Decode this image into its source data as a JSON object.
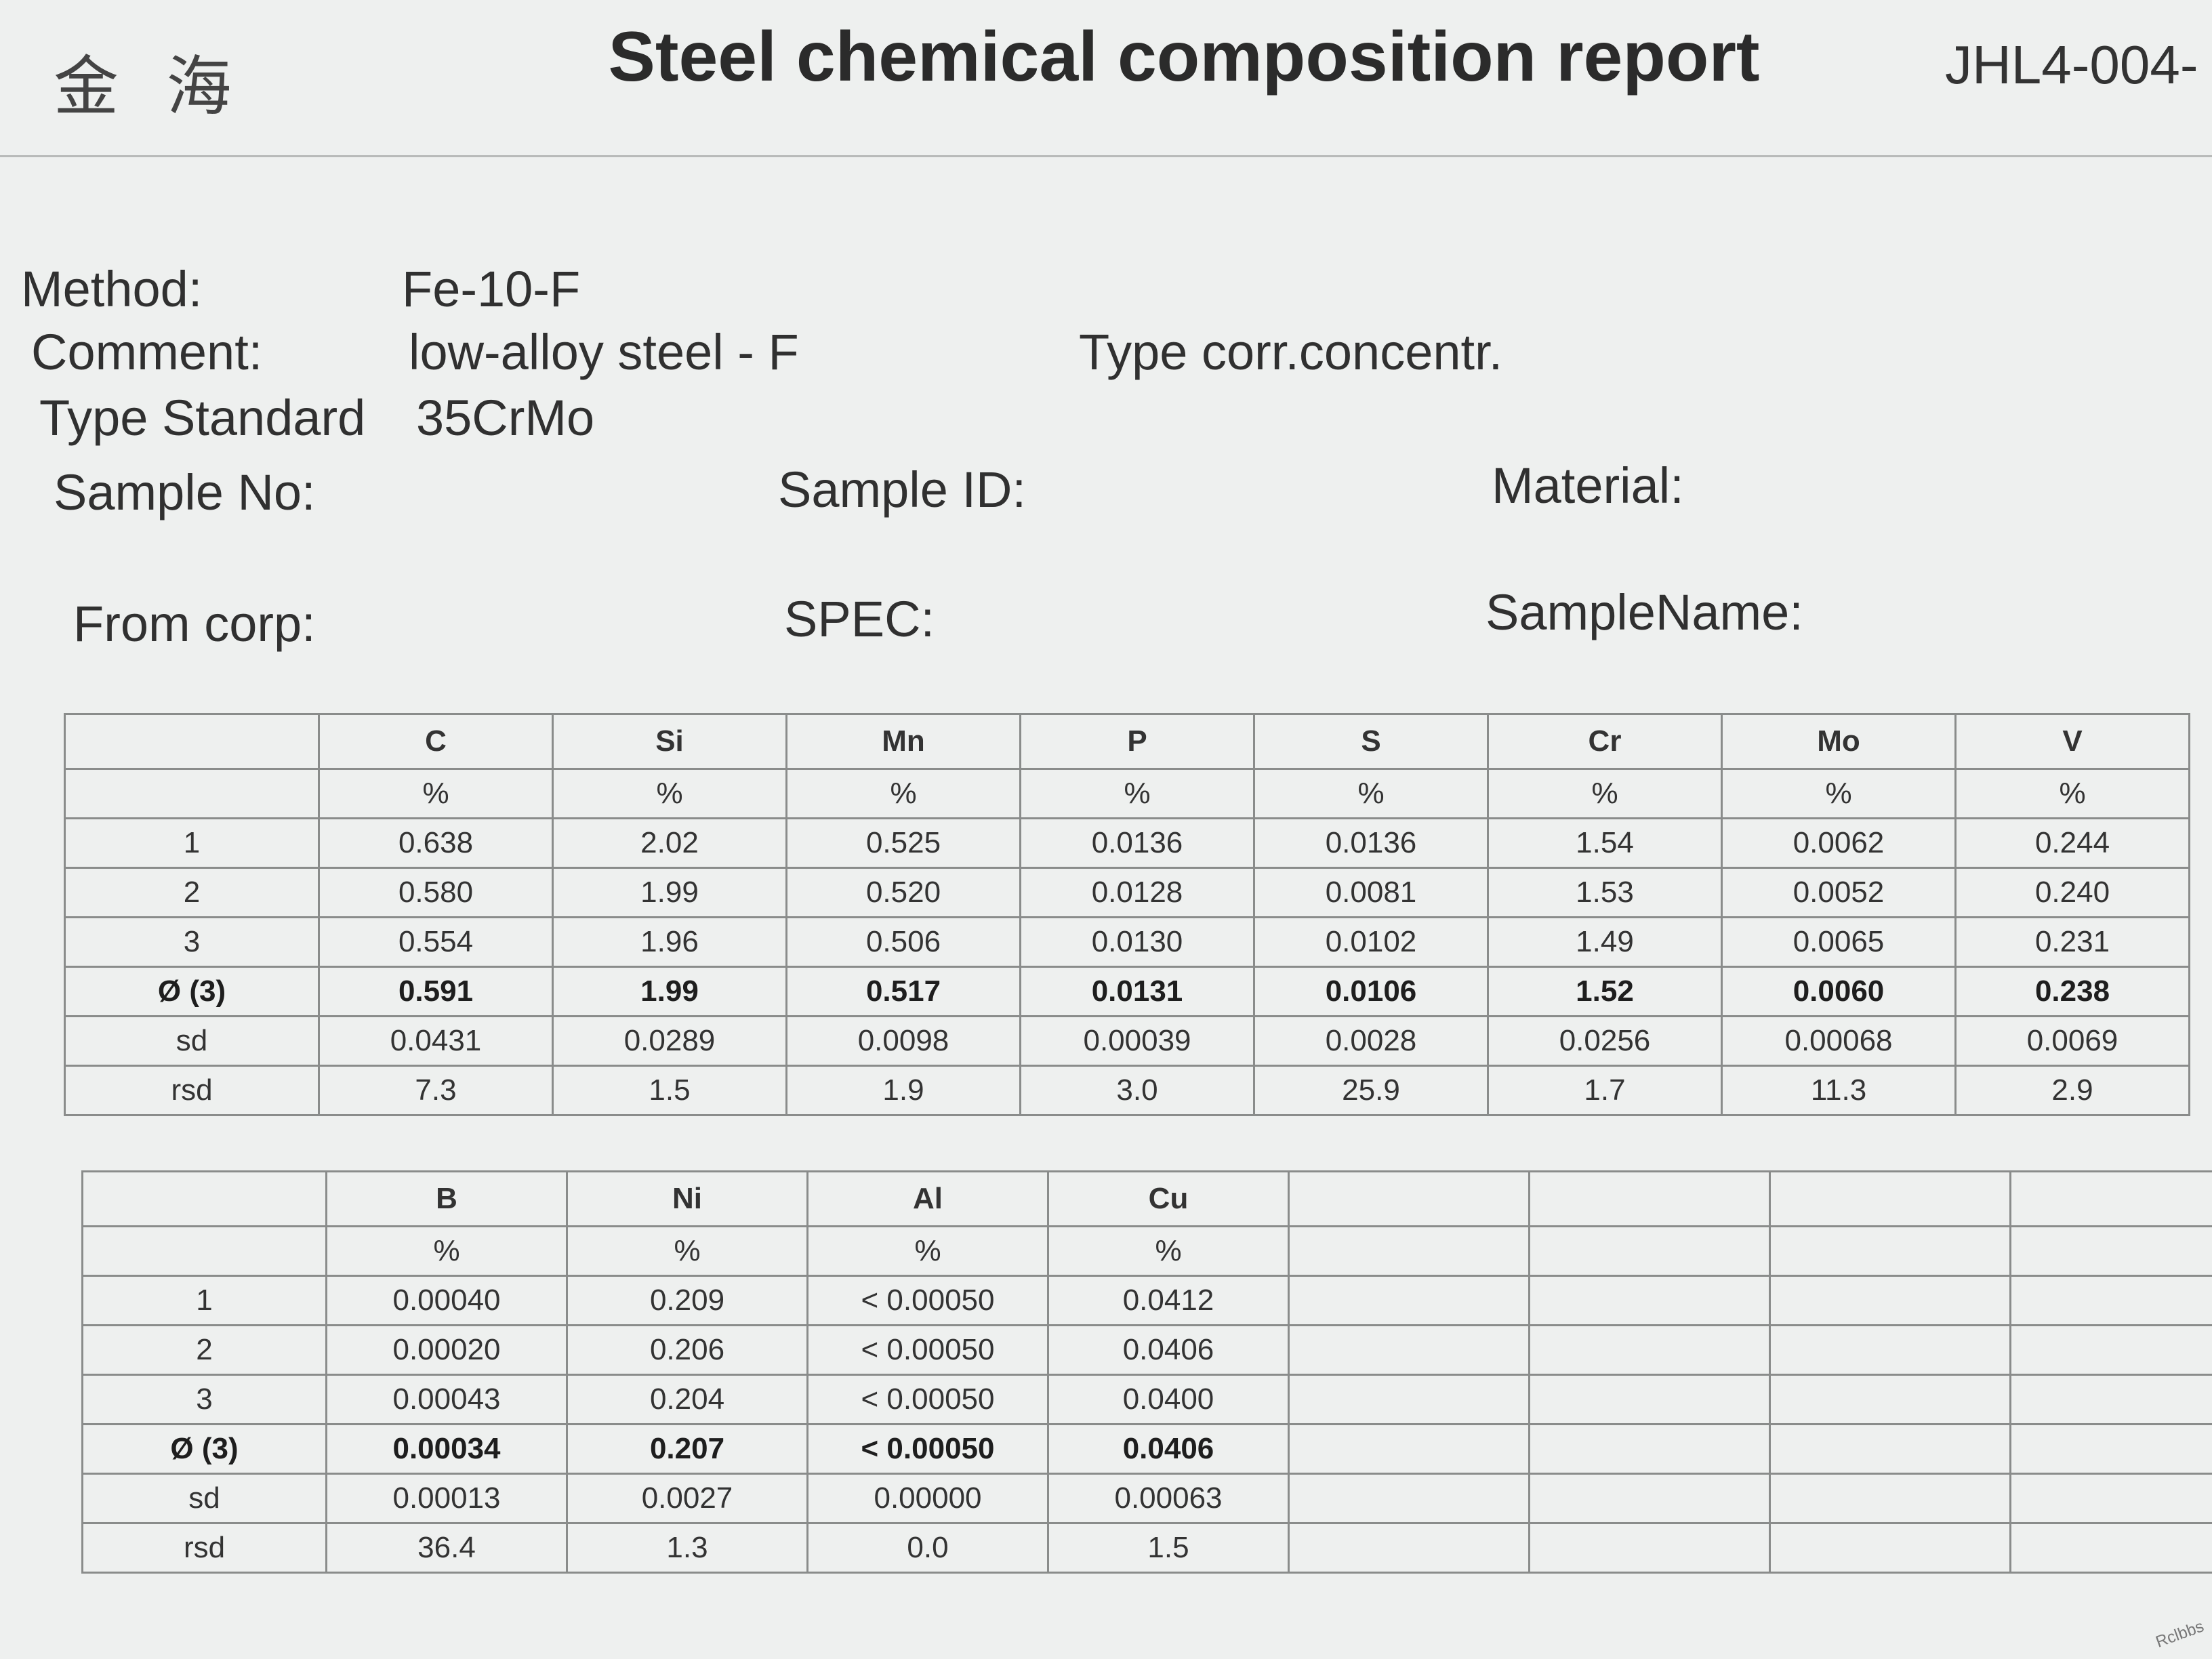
{
  "header": {
    "logo": "金 海",
    "title": "Steel chemical composition report",
    "doc_no": "JHL4-004-"
  },
  "fields": {
    "method_label": "Method:",
    "method": "Fe-10-F",
    "comment_label": "Comment:",
    "comment": "low-alloy steel - F",
    "type_corr": "Type corr.concentr.",
    "type_standard_label": "Type Standard",
    "type_standard": "35CrMo",
    "sample_no_label": "Sample No:",
    "sample_id_label": "Sample ID:",
    "material_label": "Material:",
    "from_corp_label": "From corp:",
    "spec_label": "SPEC:",
    "sample_name_label": "SampleName:"
  },
  "table1": {
    "columns": [
      "C",
      "Si",
      "Mn",
      "P",
      "S",
      "Cr",
      "Mo",
      "V"
    ],
    "units": [
      "%",
      "%",
      "%",
      "%",
      "%",
      "%",
      "%",
      "%"
    ],
    "rows": [
      [
        "1",
        "0.638",
        "2.02",
        "0.525",
        "0.0136",
        "0.0136",
        "1.54",
        "0.0062",
        "0.244"
      ],
      [
        "2",
        "0.580",
        "1.99",
        "0.520",
        "0.0128",
        "0.0081",
        "1.53",
        "0.0052",
        "0.240"
      ],
      [
        "3",
        "0.554",
        "1.96",
        "0.506",
        "0.0130",
        "0.0102",
        "1.49",
        "0.0065",
        "0.231"
      ],
      [
        "Ø (3)",
        "0.591",
        "1.99",
        "0.517",
        "0.0131",
        "0.0106",
        "1.52",
        "0.0060",
        "0.238"
      ],
      [
        "sd",
        "0.0431",
        "0.0289",
        "0.0098",
        "0.00039",
        "0.0028",
        "0.0256",
        "0.00068",
        "0.0069"
      ],
      [
        "rsd",
        "7.3",
        "1.5",
        "1.9",
        "3.0",
        "25.9",
        "1.7",
        "11.3",
        "2.9"
      ]
    ]
  },
  "table2": {
    "columns": [
      "B",
      "Ni",
      "Al",
      "Cu"
    ],
    "units": [
      "%",
      "%",
      "%",
      "%"
    ],
    "rows": [
      [
        "1",
        "0.00040",
        "0.209",
        "< 0.00050",
        "0.0412"
      ],
      [
        "2",
        "0.00020",
        "0.206",
        "< 0.00050",
        "0.0406"
      ],
      [
        "3",
        "0.00043",
        "0.204",
        "< 0.00050",
        "0.0400"
      ],
      [
        "Ø (3)",
        "0.00034",
        "0.207",
        "< 0.00050",
        "0.0406"
      ],
      [
        "sd",
        "0.00013",
        "0.0027",
        "0.00000",
        "0.00063"
      ],
      [
        "rsd",
        "36.4",
        "1.3",
        "0.0",
        "1.5"
      ]
    ]
  },
  "watermark": "Rclbbs"
}
